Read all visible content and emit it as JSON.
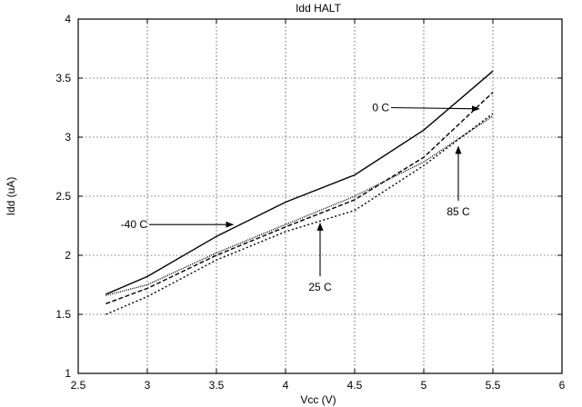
{
  "chart_data": {
    "type": "line",
    "title": "Idd HALT",
    "xlabel": "Vcc (V)",
    "ylabel": "Idd (uA)",
    "xlim": [
      2.5,
      6
    ],
    "ylim": [
      1,
      4
    ],
    "xticks": [
      2.5,
      3,
      3.5,
      4,
      4.5,
      5,
      5.5,
      6
    ],
    "yticks": [
      1,
      1.5,
      2,
      2.5,
      3,
      3.5,
      4
    ],
    "xtick_labels": [
      "2.5",
      "3",
      "3.5",
      "4",
      "4.5",
      "5",
      "5.5",
      "6"
    ],
    "ytick_labels": [
      "1",
      "1.5",
      "2",
      "2.5",
      "3",
      "3.5",
      "4"
    ],
    "grid": true,
    "legend": "none",
    "series": [
      {
        "name": "-40 C",
        "style": "solid",
        "x": [
          2.7,
          3,
          3.5,
          4,
          4.5,
          5,
          5.5
        ],
        "y": [
          1.67,
          1.82,
          2.16,
          2.45,
          2.68,
          3.06,
          3.56
        ]
      },
      {
        "name": "0 C",
        "style": "dashed",
        "x": [
          2.7,
          3,
          3.5,
          4,
          4.5,
          5,
          5.5
        ],
        "y": [
          1.59,
          1.72,
          2.0,
          2.24,
          2.47,
          2.83,
          3.38
        ]
      },
      {
        "name": "25 C",
        "style": "dotted",
        "x": [
          2.7,
          3,
          3.5,
          4,
          4.5,
          5,
          5.5
        ],
        "y": [
          1.5,
          1.65,
          1.96,
          2.2,
          2.38,
          2.76,
          3.2
        ]
      },
      {
        "name": "85 C",
        "style": "finedot",
        "x": [
          2.7,
          3,
          3.5,
          4,
          4.5,
          5,
          5.5
        ],
        "y": [
          1.66,
          1.75,
          2.02,
          2.26,
          2.5,
          2.79,
          3.18
        ]
      }
    ],
    "annotations": [
      {
        "text": "0 C",
        "tx": 4.75,
        "ty": 3.25,
        "ax": 5.4,
        "ay": 3.24
      },
      {
        "text": "-40 C",
        "tx": 3.0,
        "ty": 2.26,
        "ax": 3.62,
        "ay": 2.26
      },
      {
        "text": "25 C",
        "tx": 4.25,
        "ty": 1.73,
        "ax": 4.25,
        "ay": 2.27
      },
      {
        "text": "85 C",
        "tx": 5.25,
        "ty": 2.37,
        "ax": 5.25,
        "ay": 2.92
      }
    ]
  }
}
